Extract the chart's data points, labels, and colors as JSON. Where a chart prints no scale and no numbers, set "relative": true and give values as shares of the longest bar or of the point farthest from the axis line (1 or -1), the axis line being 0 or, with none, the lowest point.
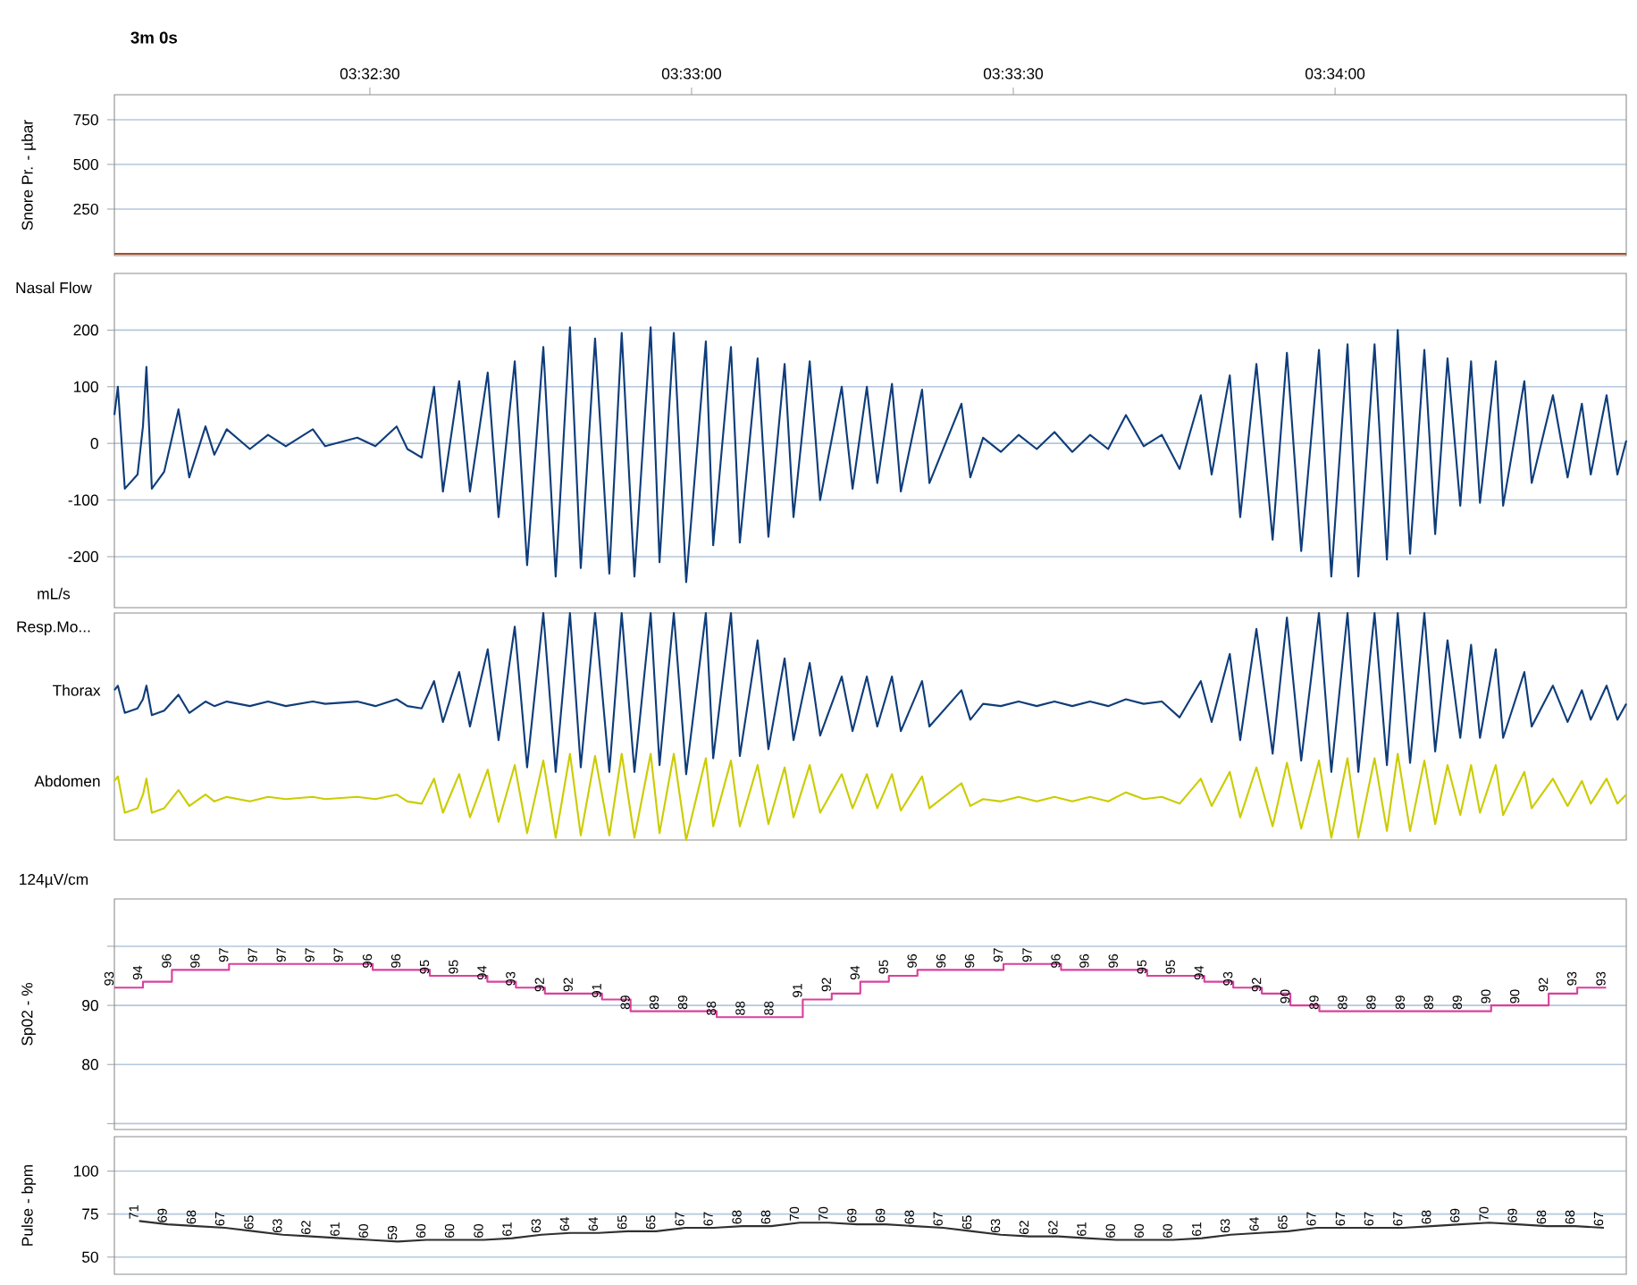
{
  "chart_data": [
    {
      "type": "line",
      "ylabel": "Snore Pr. - µbar",
      "annotations": [
        "3m 0s"
      ],
      "xlim": [
        3.53505,
        3.57421
      ],
      "xticks": [
        {
          "value": 3.541667,
          "label": "03:32:30"
        },
        {
          "value": 3.55,
          "label": "03:33:00"
        },
        {
          "value": 3.558333,
          "label": "03:33:30"
        },
        {
          "value": 3.566667,
          "label": "03:34:00"
        }
      ],
      "ylim": [
        -10,
        890
      ],
      "yticks": [
        250,
        500,
        750
      ],
      "grid": "y",
      "x": [
        3.53505,
        3.53802,
        3.54099,
        3.54397,
        3.54694,
        3.54991,
        3.55288,
        3.55585,
        3.55883,
        3.5618,
        3.56477,
        3.56774,
        3.57071,
        3.57421
      ],
      "series": [
        {
          "color": "#a0522d",
          "values": [
            0,
            0,
            0,
            0,
            0,
            0,
            0,
            0,
            0,
            0,
            0,
            0,
            0,
            0
          ]
        }
      ]
    },
    {
      "type": "line",
      "title": "Nasal Flow",
      "ylabel": "mL/s",
      "xlim": [
        3.53505,
        3.57421
      ],
      "ylim": [
        -290,
        300
      ],
      "yticks": [
        -200,
        -100,
        0,
        100,
        200
      ],
      "grid": "y",
      "tick_labels": "y",
      "x": [
        3.53505,
        3.53514,
        3.53532,
        3.53565,
        3.53579,
        3.53588,
        3.53602,
        3.53634,
        3.53671,
        3.53699,
        3.53741,
        3.53764,
        3.53796,
        3.53856,
        3.53903,
        3.53949,
        3.54019,
        3.54051,
        3.54134,
        3.54181,
        3.54236,
        3.54264,
        3.54301,
        3.54333,
        3.54356,
        3.54398,
        3.54426,
        3.54472,
        3.545,
        3.54542,
        3.54574,
        3.54616,
        3.54648,
        3.54685,
        3.54713,
        3.5475,
        3.54787,
        3.54819,
        3.54852,
        3.54894,
        3.54917,
        3.54954,
        3.54986,
        3.55037,
        3.55056,
        3.55102,
        3.55125,
        3.55171,
        3.55199,
        3.55241,
        3.55264,
        3.55306,
        3.55333,
        3.55389,
        3.55417,
        3.55454,
        3.55481,
        3.55519,
        3.55542,
        3.55597,
        3.55616,
        3.55699,
        3.55722,
        3.55755,
        3.55801,
        3.55847,
        3.55894,
        3.5594,
        3.55986,
        3.56032,
        3.56079,
        3.56125,
        3.56171,
        3.56218,
        3.56264,
        3.56319,
        3.56347,
        3.56394,
        3.56421,
        3.56463,
        3.56505,
        3.56542,
        3.56579,
        3.56625,
        3.56657,
        3.56699,
        3.56727,
        3.56769,
        3.56801,
        3.56829,
        3.56861,
        3.56898,
        3.56926,
        3.56958,
        3.56991,
        3.57019,
        3.57042,
        3.57083,
        3.57102,
        3.57157,
        3.57176,
        3.57231,
        3.57269,
        3.57306,
        3.57329,
        3.5737,
        3.57398,
        3.57421
      ],
      "series": [
        {
          "color": "#0f3d7a",
          "values": [
            50,
            100,
            -80,
            -55,
            30,
            135,
            -80,
            -50,
            60,
            -60,
            30,
            -20,
            25,
            -10,
            15,
            -5,
            25,
            -5,
            10,
            -5,
            30,
            -10,
            -25,
            100,
            -85,
            110,
            -85,
            125,
            -130,
            145,
            -215,
            170,
            -235,
            205,
            -220,
            185,
            -230,
            195,
            -235,
            205,
            -210,
            195,
            -245,
            180,
            -180,
            170,
            -175,
            150,
            -165,
            140,
            -130,
            145,
            -100,
            100,
            -80,
            100,
            -70,
            105,
            -85,
            95,
            -70,
            70,
            -60,
            10,
            -15,
            15,
            -10,
            20,
            -15,
            15,
            -10,
            50,
            -5,
            15,
            -45,
            85,
            -55,
            120,
            -130,
            140,
            -170,
            160,
            -190,
            165,
            -235,
            175,
            -235,
            175,
            -205,
            200,
            -195,
            165,
            -160,
            150,
            -110,
            145,
            -105,
            145,
            -110,
            110,
            -70,
            85,
            -60,
            70,
            -55,
            85,
            -55,
            5
          ]
        }
      ]
    },
    {
      "type": "line",
      "title": "Resp.Mo...",
      "annotations": [
        "124µV/cm"
      ],
      "relative": true,
      "xlim": [
        3.53505,
        3.57421
      ],
      "tick_labels": false,
      "x": [
        3.53505,
        3.53514,
        3.53532,
        3.53565,
        3.53579,
        3.53588,
        3.53602,
        3.53634,
        3.53671,
        3.53699,
        3.53741,
        3.53764,
        3.53796,
        3.53856,
        3.53903,
        3.53949,
        3.54019,
        3.54051,
        3.54134,
        3.54181,
        3.54236,
        3.54264,
        3.54301,
        3.54333,
        3.54356,
        3.54398,
        3.54426,
        3.54472,
        3.545,
        3.54542,
        3.54574,
        3.54616,
        3.54648,
        3.54685,
        3.54713,
        3.5475,
        3.54787,
        3.54819,
        3.54852,
        3.54894,
        3.54917,
        3.54954,
        3.54986,
        3.55037,
        3.55056,
        3.55102,
        3.55125,
        3.55171,
        3.55199,
        3.55241,
        3.55264,
        3.55306,
        3.55333,
        3.55389,
        3.55417,
        3.55454,
        3.55481,
        3.55519,
        3.55542,
        3.55597,
        3.55616,
        3.55699,
        3.55722,
        3.55755,
        3.55801,
        3.55847,
        3.55894,
        3.5594,
        3.55986,
        3.56032,
        3.56079,
        3.56125,
        3.56171,
        3.56218,
        3.56264,
        3.56319,
        3.56347,
        3.56394,
        3.56421,
        3.56463,
        3.56505,
        3.56542,
        3.56579,
        3.56625,
        3.56657,
        3.56699,
        3.56727,
        3.56769,
        3.56801,
        3.56829,
        3.56861,
        3.56898,
        3.56926,
        3.56958,
        3.56991,
        3.57019,
        3.57042,
        3.57083,
        3.57102,
        3.57157,
        3.57176,
        3.57231,
        3.57269,
        3.57306,
        3.57329,
        3.5737,
        3.57398,
        3.57421
      ],
      "series": [
        {
          "name": "Thorax",
          "color": "#0f3d7a",
          "values": [
            0.66,
            0.68,
            0.56,
            0.58,
            0.62,
            0.68,
            0.55,
            0.57,
            0.64,
            0.56,
            0.61,
            0.59,
            0.61,
            0.59,
            0.61,
            0.59,
            0.61,
            0.6,
            0.61,
            0.59,
            0.62,
            0.59,
            0.58,
            0.7,
            0.52,
            0.74,
            0.5,
            0.84,
            0.44,
            0.94,
            0.32,
            1.0,
            0.3,
            1.0,
            0.32,
            1.0,
            0.3,
            1.0,
            0.3,
            1.0,
            0.33,
            1.0,
            0.29,
            1.0,
            0.36,
            1.0,
            0.37,
            0.88,
            0.4,
            0.8,
            0.44,
            0.78,
            0.46,
            0.72,
            0.48,
            0.72,
            0.5,
            0.72,
            0.48,
            0.7,
            0.5,
            0.66,
            0.53,
            0.6,
            0.59,
            0.61,
            0.59,
            0.61,
            0.59,
            0.61,
            0.59,
            0.62,
            0.6,
            0.61,
            0.54,
            0.7,
            0.52,
            0.82,
            0.44,
            0.93,
            0.38,
            0.98,
            0.35,
            1.0,
            0.3,
            1.0,
            0.3,
            1.0,
            0.33,
            1.0,
            0.34,
            1.0,
            0.39,
            0.88,
            0.45,
            0.86,
            0.45,
            0.84,
            0.45,
            0.74,
            0.5,
            0.68,
            0.52,
            0.66,
            0.53,
            0.68,
            0.53,
            0.6
          ]
        },
        {
          "name": "Abdomen",
          "color": "#cccc00",
          "values": [
            0.26,
            0.28,
            0.12,
            0.14,
            0.2,
            0.27,
            0.12,
            0.14,
            0.22,
            0.15,
            0.2,
            0.17,
            0.19,
            0.17,
            0.19,
            0.18,
            0.19,
            0.18,
            0.19,
            0.18,
            0.2,
            0.17,
            0.16,
            0.27,
            0.12,
            0.29,
            0.1,
            0.31,
            0.08,
            0.33,
            0.03,
            0.35,
            0.01,
            0.38,
            0.02,
            0.37,
            0.02,
            0.38,
            0.01,
            0.38,
            0.03,
            0.38,
            0.0,
            0.36,
            0.06,
            0.35,
            0.06,
            0.33,
            0.07,
            0.32,
            0.1,
            0.33,
            0.12,
            0.29,
            0.14,
            0.29,
            0.14,
            0.29,
            0.13,
            0.28,
            0.14,
            0.25,
            0.15,
            0.18,
            0.17,
            0.19,
            0.17,
            0.19,
            0.17,
            0.19,
            0.17,
            0.21,
            0.18,
            0.19,
            0.16,
            0.27,
            0.15,
            0.3,
            0.1,
            0.32,
            0.06,
            0.34,
            0.05,
            0.35,
            0.01,
            0.36,
            0.01,
            0.36,
            0.04,
            0.38,
            0.04,
            0.35,
            0.07,
            0.33,
            0.11,
            0.33,
            0.12,
            0.33,
            0.11,
            0.3,
            0.14,
            0.27,
            0.15,
            0.26,
            0.16,
            0.27,
            0.16,
            0.2
          ]
        }
      ]
    },
    {
      "type": "step",
      "ylabel": "Sp02 - %",
      "xlim": [
        3.53505,
        3.57421
      ],
      "ylim": [
        69,
        108
      ],
      "yticks": [
        {
          "value": 70,
          "label": null
        },
        80,
        90,
        {
          "value": 100,
          "label": null
        }
      ],
      "grid": "y",
      "tick_labels": "y",
      "data_labels": true,
      "x": [
        3.53505,
        3.53579,
        3.53654,
        3.53728,
        3.53802,
        3.53877,
        3.53951,
        3.54025,
        3.54099,
        3.54174,
        3.54248,
        3.54322,
        3.54397,
        3.54471,
        3.54545,
        3.5462,
        3.54694,
        3.54768,
        3.54842,
        3.54917,
        3.54991,
        3.55065,
        3.5514,
        3.55214,
        3.55288,
        3.55363,
        3.55437,
        3.55511,
        3.55585,
        3.5566,
        3.55734,
        3.55808,
        3.55883,
        3.55957,
        3.56031,
        3.56106,
        3.5618,
        3.56254,
        3.56328,
        3.56403,
        3.56477,
        3.56551,
        3.56626,
        3.567,
        3.56774,
        3.56849,
        3.56923,
        3.56997,
        3.57071,
        3.57146,
        3.5722,
        3.57294,
        3.57369
      ],
      "series": [
        {
          "color": "#d9409e",
          "values": [
            93,
            94,
            96,
            96,
            97,
            97,
            97,
            97,
            97,
            96,
            96,
            95,
            95,
            94,
            93,
            92,
            92,
            91,
            89,
            89,
            89,
            88,
            88,
            88,
            91,
            92,
            94,
            95,
            96,
            96,
            96,
            97,
            97,
            96,
            96,
            96,
            95,
            95,
            94,
            93,
            92,
            90,
            89,
            89,
            89,
            89,
            89,
            89,
            90,
            90,
            92,
            93,
            93
          ]
        }
      ]
    },
    {
      "type": "line",
      "ylabel": "Pulse - bpm",
      "xlim": [
        3.53505,
        3.57421
      ],
      "ylim": [
        40,
        120
      ],
      "yticks": [
        50,
        75,
        100
      ],
      "grid": "y",
      "tick_labels": "y",
      "data_labels": true,
      "x": [
        3.53569,
        3.53643,
        3.53718,
        3.53792,
        3.53867,
        3.53941,
        3.54015,
        3.5409,
        3.54164,
        3.54239,
        3.54313,
        3.54387,
        3.54462,
        3.54536,
        3.54611,
        3.54685,
        3.54759,
        3.54834,
        3.54908,
        3.54983,
        3.55057,
        3.55131,
        3.55206,
        3.5528,
        3.55355,
        3.55429,
        3.55503,
        3.55578,
        3.55652,
        3.55727,
        3.55801,
        3.55875,
        3.5595,
        3.56024,
        3.56099,
        3.56173,
        3.56247,
        3.56322,
        3.56396,
        3.56471,
        3.56545,
        3.56619,
        3.56694,
        3.56768,
        3.56843,
        3.56917,
        3.56991,
        3.57066,
        3.5714,
        3.57215,
        3.57289,
        3.57363
      ],
      "series": [
        {
          "color": "#303030",
          "values": [
            71,
            69,
            68,
            67,
            65,
            63,
            62,
            61,
            60,
            59,
            60,
            60,
            60,
            61,
            63,
            64,
            64,
            65,
            65,
            67,
            67,
            68,
            68,
            70,
            70,
            69,
            69,
            68,
            67,
            65,
            63,
            62,
            62,
            61,
            60,
            60,
            60,
            61,
            63,
            64,
            65,
            67,
            67,
            67,
            67,
            68,
            69,
            70,
            69,
            68,
            68,
            67
          ]
        }
      ]
    }
  ]
}
